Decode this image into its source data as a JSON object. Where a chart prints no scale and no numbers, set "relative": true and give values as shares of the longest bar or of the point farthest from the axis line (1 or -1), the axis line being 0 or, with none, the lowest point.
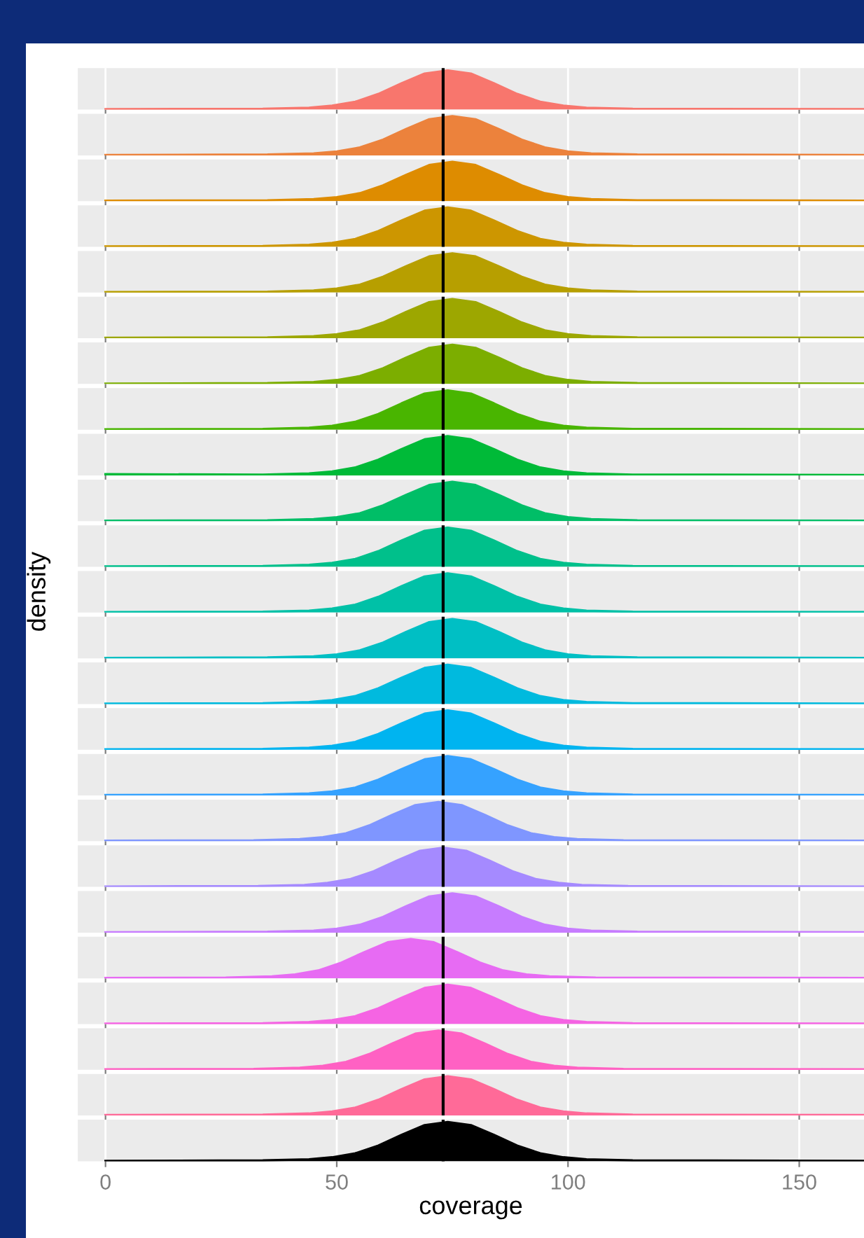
{
  "chart_data": [
    {
      "type": "area",
      "color": "#F8766D",
      "x": [
        0,
        34,
        44,
        49,
        54,
        59,
        64,
        69,
        74,
        79,
        84,
        89,
        94,
        99,
        104,
        114,
        164
      ],
      "values": [
        0.01,
        0.02,
        0.05,
        0.1,
        0.2,
        0.4,
        0.67,
        0.92,
        1,
        0.92,
        0.67,
        0.4,
        0.2,
        0.1,
        0.05,
        0.02,
        0.01
      ],
      "relative": true,
      "xlim": [
        -6,
        164
      ],
      "xticks": [
        0,
        50,
        100,
        150
      ],
      "tick_labels": false,
      "grid": "x",
      "ref_lines": [
        {
          "axis": "x",
          "value": 73,
          "color": "#000000"
        }
      ]
    },
    {
      "type": "area",
      "color": "#EC823C",
      "x": [
        0,
        35,
        45,
        50,
        55,
        60,
        65,
        70,
        75,
        80,
        85,
        90,
        95,
        100,
        105,
        115,
        164
      ],
      "values": [
        0.01,
        0.02,
        0.05,
        0.1,
        0.2,
        0.4,
        0.67,
        0.92,
        1,
        0.92,
        0.67,
        0.4,
        0.2,
        0.1,
        0.05,
        0.02,
        0.01
      ],
      "relative": true,
      "xlim": [
        -6,
        164
      ],
      "xticks": [
        0,
        50,
        100,
        150
      ],
      "tick_labels": false,
      "grid": "x",
      "ref_lines": [
        {
          "axis": "x",
          "value": 73,
          "color": "#000000"
        }
      ]
    },
    {
      "type": "area",
      "color": "#DE8C00",
      "x": [
        0,
        35,
        45,
        50,
        55,
        60,
        65,
        70,
        75,
        80,
        85,
        90,
        95,
        100,
        105,
        115,
        164
      ],
      "values": [
        0.01,
        0.02,
        0.05,
        0.1,
        0.2,
        0.4,
        0.67,
        0.92,
        1,
        0.92,
        0.67,
        0.4,
        0.2,
        0.1,
        0.05,
        0.02,
        0.01
      ],
      "relative": true,
      "xlim": [
        -6,
        164
      ],
      "xticks": [
        0,
        50,
        100,
        150
      ],
      "tick_labels": false,
      "grid": "x",
      "ref_lines": [
        {
          "axis": "x",
          "value": 73,
          "color": "#000000"
        }
      ]
    },
    {
      "type": "area",
      "color": "#CD9600",
      "x": [
        0,
        34,
        44,
        49,
        54,
        59,
        64,
        69,
        74,
        79,
        84,
        89,
        94,
        99,
        104,
        114,
        164
      ],
      "values": [
        0.01,
        0.02,
        0.05,
        0.1,
        0.2,
        0.4,
        0.67,
        0.92,
        1,
        0.92,
        0.67,
        0.4,
        0.2,
        0.1,
        0.05,
        0.02,
        0.01
      ],
      "relative": true,
      "xlim": [
        -6,
        164
      ],
      "xticks": [
        0,
        50,
        100,
        150
      ],
      "tick_labels": false,
      "grid": "x",
      "ref_lines": [
        {
          "axis": "x",
          "value": 73,
          "color": "#000000"
        }
      ]
    },
    {
      "type": "area",
      "color": "#B79F00",
      "x": [
        0,
        35,
        45,
        50,
        55,
        60,
        65,
        70,
        75,
        80,
        85,
        90,
        95,
        100,
        105,
        115,
        164
      ],
      "values": [
        0.01,
        0.02,
        0.05,
        0.1,
        0.2,
        0.4,
        0.67,
        0.92,
        1,
        0.92,
        0.67,
        0.4,
        0.2,
        0.1,
        0.05,
        0.02,
        0.01
      ],
      "relative": true,
      "xlim": [
        -6,
        164
      ],
      "xticks": [
        0,
        50,
        100,
        150
      ],
      "tick_labels": false,
      "grid": "x",
      "ref_lines": [
        {
          "axis": "x",
          "value": 73,
          "color": "#000000"
        }
      ]
    },
    {
      "type": "area",
      "color": "#9DA700",
      "x": [
        0,
        35,
        45,
        50,
        55,
        60,
        65,
        70,
        75,
        80,
        85,
        90,
        95,
        100,
        105,
        115,
        164
      ],
      "values": [
        0.01,
        0.02,
        0.05,
        0.1,
        0.2,
        0.4,
        0.67,
        0.92,
        1,
        0.92,
        0.67,
        0.4,
        0.2,
        0.1,
        0.05,
        0.02,
        0.01
      ],
      "relative": true,
      "xlim": [
        -6,
        164
      ],
      "xticks": [
        0,
        50,
        100,
        150
      ],
      "tick_labels": false,
      "grid": "x",
      "ref_lines": [
        {
          "axis": "x",
          "value": 73,
          "color": "#000000"
        }
      ]
    },
    {
      "type": "area",
      "color": "#7CAE00",
      "x": [
        0,
        35,
        45,
        50,
        55,
        60,
        65,
        70,
        75,
        80,
        85,
        90,
        95,
        100,
        105,
        115,
        164
      ],
      "values": [
        0.01,
        0.02,
        0.05,
        0.1,
        0.2,
        0.4,
        0.67,
        0.92,
        1,
        0.92,
        0.67,
        0.4,
        0.2,
        0.1,
        0.05,
        0.02,
        0.01
      ],
      "relative": true,
      "xlim": [
        -6,
        164
      ],
      "xticks": [
        0,
        50,
        100,
        150
      ],
      "tick_labels": false,
      "grid": "x",
      "ref_lines": [
        {
          "axis": "x",
          "value": 73,
          "color": "#000000"
        }
      ]
    },
    {
      "type": "area",
      "color": "#49B500",
      "x": [
        0,
        34,
        44,
        49,
        54,
        59,
        64,
        69,
        74,
        79,
        84,
        89,
        94,
        99,
        104,
        114,
        164
      ],
      "values": [
        0.01,
        0.02,
        0.05,
        0.1,
        0.2,
        0.4,
        0.67,
        0.92,
        1,
        0.92,
        0.67,
        0.4,
        0.2,
        0.1,
        0.05,
        0.02,
        0.01
      ],
      "relative": true,
      "xlim": [
        -6,
        164
      ],
      "xticks": [
        0,
        50,
        100,
        150
      ],
      "tick_labels": false,
      "grid": "x",
      "ref_lines": [
        {
          "axis": "x",
          "value": 73,
          "color": "#000000"
        }
      ]
    },
    {
      "type": "area",
      "color": "#00BA38",
      "x": [
        0,
        34,
        44,
        49,
        54,
        59,
        64,
        69,
        74,
        79,
        84,
        89,
        94,
        99,
        104,
        114,
        164
      ],
      "values": [
        0.03,
        0.02,
        0.05,
        0.1,
        0.2,
        0.4,
        0.67,
        0.92,
        1,
        0.92,
        0.67,
        0.4,
        0.2,
        0.1,
        0.05,
        0.02,
        0.01
      ],
      "relative": true,
      "xlim": [
        -6,
        164
      ],
      "xticks": [
        0,
        50,
        100,
        150
      ],
      "tick_labels": false,
      "grid": "x",
      "ref_lines": [
        {
          "axis": "x",
          "value": 73,
          "color": "#000000"
        }
      ]
    },
    {
      "type": "area",
      "color": "#00BE67",
      "x": [
        0,
        35,
        45,
        50,
        55,
        60,
        65,
        70,
        75,
        80,
        85,
        90,
        95,
        100,
        105,
        115,
        164
      ],
      "values": [
        0.01,
        0.02,
        0.05,
        0.1,
        0.2,
        0.4,
        0.67,
        0.92,
        1,
        0.92,
        0.67,
        0.4,
        0.2,
        0.1,
        0.05,
        0.02,
        0.01
      ],
      "relative": true,
      "xlim": [
        -6,
        164
      ],
      "xticks": [
        0,
        50,
        100,
        150
      ],
      "tick_labels": false,
      "grid": "x",
      "ref_lines": [
        {
          "axis": "x",
          "value": 73,
          "color": "#000000"
        }
      ]
    },
    {
      "type": "area",
      "color": "#00C08B",
      "x": [
        0,
        34,
        44,
        49,
        54,
        59,
        64,
        69,
        74,
        79,
        84,
        89,
        94,
        99,
        104,
        114,
        164
      ],
      "values": [
        0.01,
        0.02,
        0.05,
        0.1,
        0.2,
        0.4,
        0.67,
        0.92,
        1,
        0.92,
        0.67,
        0.4,
        0.2,
        0.1,
        0.05,
        0.02,
        0.01
      ],
      "relative": true,
      "xlim": [
        -6,
        164
      ],
      "xticks": [
        0,
        50,
        100,
        150
      ],
      "tick_labels": false,
      "grid": "x",
      "ref_lines": [
        {
          "axis": "x",
          "value": 73,
          "color": "#000000"
        }
      ]
    },
    {
      "type": "area",
      "color": "#00C1A7",
      "x": [
        0,
        34,
        44,
        49,
        54,
        59,
        64,
        69,
        74,
        79,
        84,
        89,
        94,
        99,
        104,
        114,
        164
      ],
      "values": [
        0.01,
        0.02,
        0.05,
        0.1,
        0.2,
        0.4,
        0.67,
        0.92,
        1,
        0.92,
        0.67,
        0.4,
        0.2,
        0.1,
        0.05,
        0.02,
        0.01
      ],
      "relative": true,
      "xlim": [
        -6,
        164
      ],
      "xticks": [
        0,
        50,
        100,
        150
      ],
      "tick_labels": false,
      "grid": "x",
      "ylabel": "density",
      "ref_lines": [
        {
          "axis": "x",
          "value": 73,
          "color": "#000000"
        }
      ]
    },
    {
      "type": "area",
      "color": "#00BFC4",
      "x": [
        0,
        35,
        45,
        50,
        55,
        60,
        65,
        70,
        75,
        80,
        85,
        90,
        95,
        100,
        105,
        115,
        164
      ],
      "values": [
        0.01,
        0.02,
        0.05,
        0.1,
        0.2,
        0.4,
        0.67,
        0.92,
        1,
        0.92,
        0.67,
        0.4,
        0.2,
        0.1,
        0.05,
        0.02,
        0.01
      ],
      "relative": true,
      "xlim": [
        -6,
        164
      ],
      "xticks": [
        0,
        50,
        100,
        150
      ],
      "tick_labels": false,
      "grid": "x",
      "ref_lines": [
        {
          "axis": "x",
          "value": 73,
          "color": "#000000"
        }
      ]
    },
    {
      "type": "area",
      "color": "#00BADE",
      "x": [
        0,
        34,
        44,
        49,
        54,
        59,
        64,
        69,
        74,
        79,
        84,
        89,
        94,
        99,
        104,
        114,
        164
      ],
      "values": [
        0.01,
        0.02,
        0.05,
        0.1,
        0.2,
        0.4,
        0.67,
        0.92,
        1,
        0.92,
        0.67,
        0.4,
        0.2,
        0.1,
        0.05,
        0.02,
        0.01
      ],
      "relative": true,
      "xlim": [
        -6,
        164
      ],
      "xticks": [
        0,
        50,
        100,
        150
      ],
      "tick_labels": false,
      "grid": "x",
      "ref_lines": [
        {
          "axis": "x",
          "value": 73,
          "color": "#000000"
        }
      ]
    },
    {
      "type": "area",
      "color": "#00B4F0",
      "x": [
        0,
        34,
        44,
        49,
        54,
        59,
        64,
        69,
        74,
        79,
        84,
        89,
        94,
        99,
        104,
        114,
        164
      ],
      "values": [
        0.01,
        0.02,
        0.05,
        0.1,
        0.2,
        0.4,
        0.67,
        0.92,
        1,
        0.92,
        0.67,
        0.4,
        0.2,
        0.1,
        0.05,
        0.02,
        0.01
      ],
      "relative": true,
      "xlim": [
        -6,
        164
      ],
      "xticks": [
        0,
        50,
        100,
        150
      ],
      "tick_labels": false,
      "grid": "x",
      "ref_lines": [
        {
          "axis": "x",
          "value": 73,
          "color": "#000000"
        }
      ]
    },
    {
      "type": "area",
      "color": "#35A2FF",
      "x": [
        0,
        34,
        44,
        49,
        54,
        59,
        64,
        69,
        74,
        79,
        84,
        89,
        94,
        99,
        104,
        114,
        164
      ],
      "values": [
        0.01,
        0.02,
        0.05,
        0.1,
        0.2,
        0.4,
        0.67,
        0.92,
        1,
        0.92,
        0.67,
        0.4,
        0.2,
        0.1,
        0.05,
        0.02,
        0.01
      ],
      "relative": true,
      "xlim": [
        -6,
        164
      ],
      "xticks": [
        0,
        50,
        100,
        150
      ],
      "tick_labels": false,
      "grid": "x",
      "ref_lines": [
        {
          "axis": "x",
          "value": 73,
          "color": "#000000"
        }
      ]
    },
    {
      "type": "area",
      "color": "#7F96FF",
      "x": [
        0,
        32,
        42,
        47,
        52,
        57,
        62,
        67,
        72,
        77,
        82,
        87,
        92,
        97,
        102,
        112,
        164
      ],
      "values": [
        0.01,
        0.02,
        0.05,
        0.1,
        0.2,
        0.4,
        0.67,
        0.92,
        1,
        0.92,
        0.67,
        0.4,
        0.2,
        0.1,
        0.05,
        0.02,
        0.01
      ],
      "relative": true,
      "xlim": [
        -6,
        164
      ],
      "xticks": [
        0,
        50,
        100,
        150
      ],
      "tick_labels": false,
      "grid": "x",
      "ref_lines": [
        {
          "axis": "x",
          "value": 73,
          "color": "#000000"
        }
      ]
    },
    {
      "type": "area",
      "color": "#A58AFF",
      "x": [
        0,
        33,
        43,
        48,
        53,
        58,
        63,
        68,
        73,
        78,
        83,
        88,
        93,
        98,
        103,
        113,
        164
      ],
      "values": [
        0.01,
        0.02,
        0.05,
        0.1,
        0.2,
        0.4,
        0.67,
        0.92,
        1,
        0.92,
        0.67,
        0.4,
        0.2,
        0.1,
        0.05,
        0.02,
        0.01
      ],
      "relative": true,
      "xlim": [
        -6,
        164
      ],
      "xticks": [
        0,
        50,
        100,
        150
      ],
      "tick_labels": false,
      "grid": "x",
      "ref_lines": [
        {
          "axis": "x",
          "value": 73,
          "color": "#000000"
        }
      ]
    },
    {
      "type": "area",
      "color": "#C77CFF",
      "x": [
        0,
        35,
        45,
        50,
        55,
        60,
        65,
        70,
        75,
        80,
        85,
        90,
        95,
        100,
        105,
        115,
        164
      ],
      "values": [
        0.01,
        0.02,
        0.05,
        0.1,
        0.2,
        0.4,
        0.67,
        0.92,
        1,
        0.92,
        0.67,
        0.4,
        0.2,
        0.1,
        0.05,
        0.02,
        0.01
      ],
      "relative": true,
      "xlim": [
        -6,
        164
      ],
      "xticks": [
        0,
        50,
        100,
        150
      ],
      "tick_labels": false,
      "grid": "x",
      "ref_lines": [
        {
          "axis": "x",
          "value": 73,
          "color": "#000000"
        }
      ]
    },
    {
      "type": "area",
      "color": "#E76BF3",
      "x": [
        0,
        26,
        36,
        41,
        46,
        51,
        56,
        61,
        66,
        71,
        76,
        81,
        86,
        91,
        96,
        106,
        164
      ],
      "values": [
        0.01,
        0.02,
        0.05,
        0.1,
        0.2,
        0.4,
        0.67,
        0.92,
        1,
        0.92,
        0.67,
        0.4,
        0.2,
        0.1,
        0.05,
        0.02,
        0.01
      ],
      "relative": true,
      "xlim": [
        -6,
        164
      ],
      "xticks": [
        0,
        50,
        100,
        150
      ],
      "tick_labels": false,
      "grid": "x",
      "ref_lines": [
        {
          "axis": "x",
          "value": 73,
          "color": "#000000"
        }
      ]
    },
    {
      "type": "area",
      "color": "#F564E3",
      "x": [
        0,
        34,
        44,
        49,
        54,
        59,
        64,
        69,
        74,
        79,
        84,
        89,
        94,
        99,
        104,
        114,
        164
      ],
      "values": [
        0.01,
        0.02,
        0.05,
        0.1,
        0.2,
        0.4,
        0.67,
        0.92,
        1,
        0.92,
        0.67,
        0.4,
        0.2,
        0.1,
        0.05,
        0.02,
        0.01
      ],
      "relative": true,
      "xlim": [
        -6,
        164
      ],
      "xticks": [
        0,
        50,
        100,
        150
      ],
      "tick_labels": false,
      "grid": "x",
      "ref_lines": [
        {
          "axis": "x",
          "value": 73,
          "color": "#000000"
        }
      ]
    },
    {
      "type": "area",
      "color": "#FF61C3",
      "x": [
        0,
        32,
        42,
        47,
        52,
        57,
        62,
        67,
        72,
        77,
        82,
        87,
        92,
        97,
        102,
        112,
        164
      ],
      "values": [
        0.01,
        0.02,
        0.05,
        0.1,
        0.2,
        0.4,
        0.67,
        0.92,
        1,
        0.92,
        0.67,
        0.4,
        0.2,
        0.1,
        0.05,
        0.02,
        0.01
      ],
      "relative": true,
      "xlim": [
        -6,
        164
      ],
      "xticks": [
        0,
        50,
        100,
        150
      ],
      "tick_labels": false,
      "grid": "x",
      "ref_lines": [
        {
          "axis": "x",
          "value": 73,
          "color": "#000000"
        }
      ]
    },
    {
      "type": "area",
      "color": "#FF6A98",
      "x": [
        0,
        34,
        44,
        49,
        54,
        59,
        64,
        69,
        74,
        79,
        84,
        89,
        94,
        99,
        104,
        114,
        164
      ],
      "values": [
        0.01,
        0.02,
        0.05,
        0.1,
        0.2,
        0.4,
        0.67,
        0.92,
        1,
        0.92,
        0.67,
        0.4,
        0.2,
        0.1,
        0.05,
        0.02,
        0.01
      ],
      "relative": true,
      "xlim": [
        -6,
        164
      ],
      "xticks": [
        0,
        50,
        100,
        150
      ],
      "tick_labels": false,
      "grid": "x",
      "ref_lines": [
        {
          "axis": "x",
          "value": 73,
          "color": "#000000"
        }
      ]
    },
    {
      "type": "area",
      "color": "#000000",
      "x": [
        0,
        34,
        44,
        49,
        54,
        59,
        64,
        69,
        74,
        79,
        84,
        89,
        94,
        99,
        104,
        114,
        164
      ],
      "values": [
        0.01,
        0.02,
        0.05,
        0.1,
        0.2,
        0.4,
        0.67,
        0.92,
        1,
        0.92,
        0.67,
        0.4,
        0.2,
        0.1,
        0.05,
        0.02,
        0.01
      ],
      "relative": true,
      "xlim": [
        -6,
        164
      ],
      "xticks": [
        0,
        50,
        100,
        150
      ],
      "tick_labels": "x",
      "grid": "x",
      "xlabel": "coverage",
      "ref_lines": [
        {
          "axis": "x",
          "value": 73,
          "color": "#000000"
        }
      ]
    }
  ]
}
